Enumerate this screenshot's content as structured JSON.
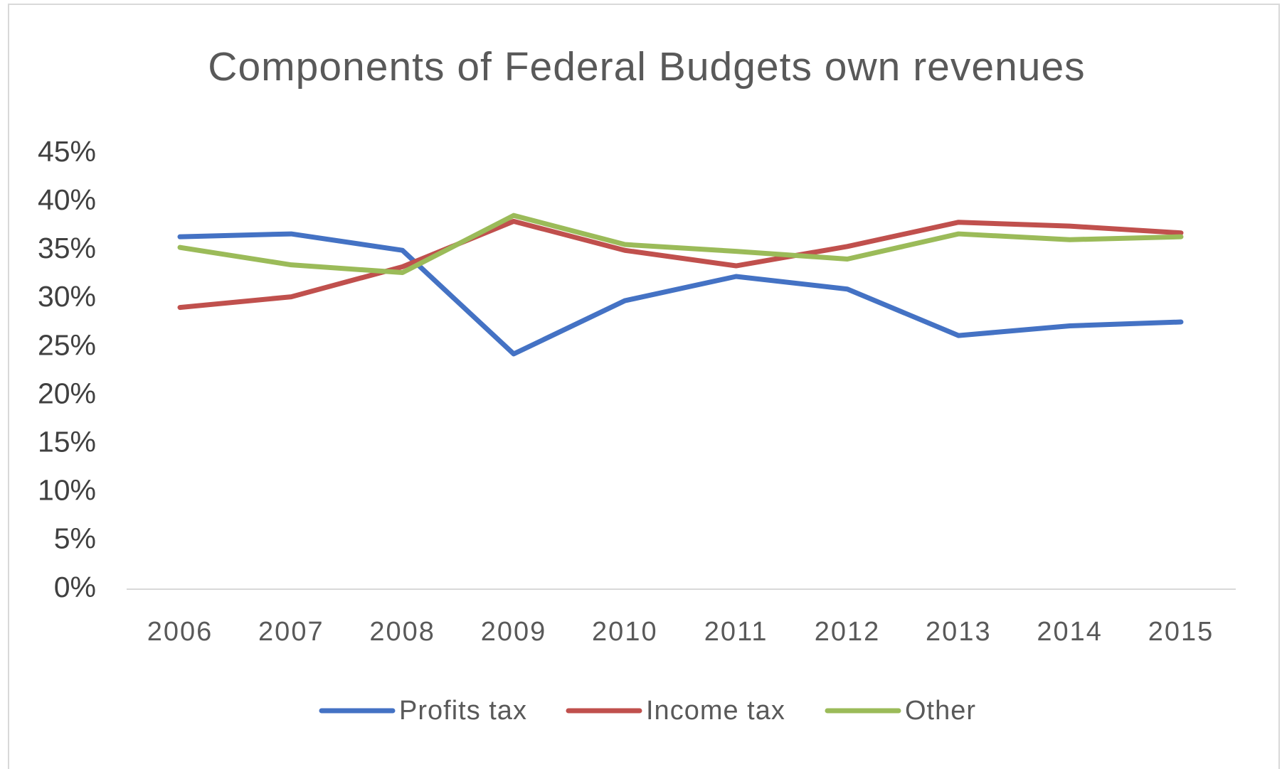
{
  "chart_data": {
    "type": "line",
    "title": "Components  of Federal Budgets own revenues",
    "x": [
      "2006",
      "2007",
      "2008",
      "2009",
      "2010",
      "2011",
      "2012",
      "2013",
      "2014",
      "2015"
    ],
    "series": [
      {
        "name": "Profits tax",
        "color": "#4472c4",
        "values": [
          36.4,
          36.7,
          35.0,
          24.3,
          29.8,
          32.3,
          31.0,
          26.2,
          27.2,
          27.6
        ]
      },
      {
        "name": "Income tax",
        "color": "#c0504d",
        "values": [
          29.1,
          30.2,
          33.3,
          38.0,
          35.0,
          33.4,
          35.4,
          37.9,
          37.5,
          36.8
        ]
      },
      {
        "name": "Other",
        "color": "#9bbb59",
        "values": [
          35.3,
          33.5,
          32.7,
          38.6,
          35.6,
          34.9,
          34.1,
          36.7,
          36.1,
          36.4
        ]
      }
    ],
    "ylim": [
      0,
      45
    ],
    "yticks": [
      {
        "value": 0,
        "label": "0%"
      },
      {
        "value": 5,
        "label": "5%"
      },
      {
        "value": 10,
        "label": "10%"
      },
      {
        "value": 15,
        "label": "15%"
      },
      {
        "value": 20,
        "label": "20%"
      },
      {
        "value": 25,
        "label": "25%"
      },
      {
        "value": 30,
        "label": "30%"
      },
      {
        "value": 35,
        "label": "35%"
      },
      {
        "value": 40,
        "label": "40%"
      },
      {
        "value": 45,
        "label": "45%"
      }
    ],
    "grid": false,
    "legend": "bottom"
  }
}
